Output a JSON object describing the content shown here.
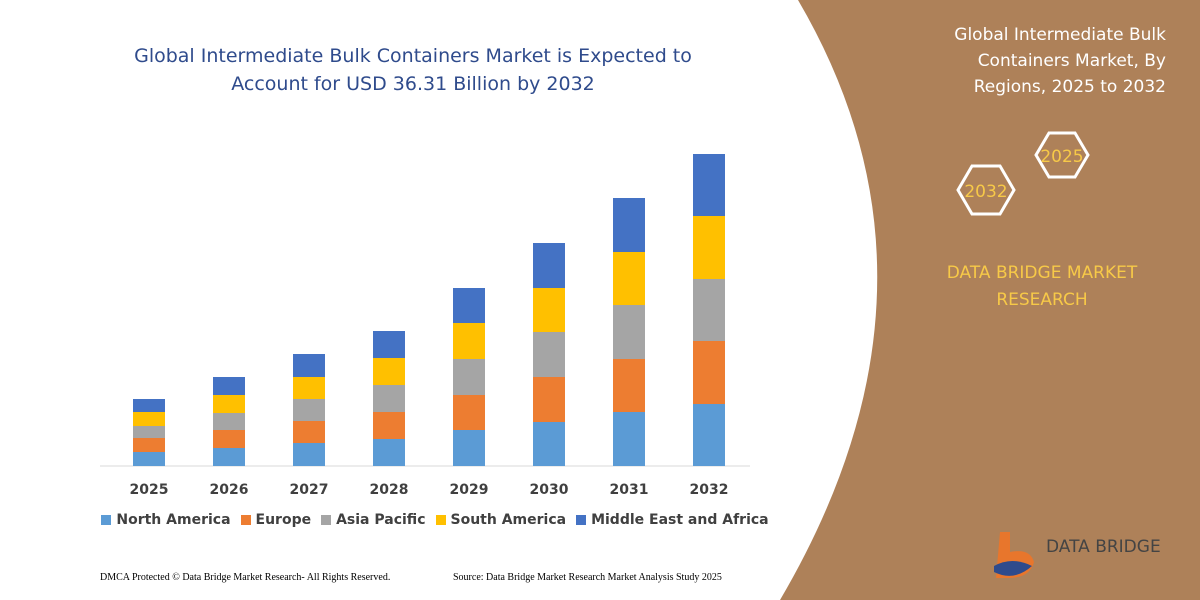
{
  "chart_data": {
    "type": "stacked_bar",
    "title": "Global Intermediate Bulk Containers Market is Expected to Account for USD 36.31 Billion by 2032",
    "categories": [
      "2025",
      "2026",
      "2027",
      "2028",
      "2029",
      "2030",
      "2031",
      "2032"
    ],
    "series": [
      {
        "name": "North America",
        "color": "#5b9bd5",
        "values": [
          14,
          18,
          23,
          27,
          36,
          44,
          54,
          62
        ]
      },
      {
        "name": "Europe",
        "color": "#ed7d31",
        "values": [
          14,
          18,
          22,
          27,
          35,
          45,
          53,
          63
        ]
      },
      {
        "name": "Asia Pacific",
        "color": "#a5a5a5",
        "values": [
          12,
          17,
          22,
          27,
          36,
          45,
          54,
          62
        ]
      },
      {
        "name": "South America",
        "color": "#ffc000",
        "values": [
          14,
          18,
          22,
          27,
          36,
          44,
          53,
          63
        ]
      },
      {
        "name": "Middle East and Africa",
        "color": "#4472c4",
        "values": [
          13,
          18,
          23,
          27,
          35,
          45,
          54,
          62
        ]
      }
    ]
  },
  "panel": {
    "title": "Global Intermediate Bulk Containers Market, By Regions, 2025 to 2032",
    "hex_left": "2032",
    "hex_right": "2025",
    "brand": "DATA BRIDGE MARKET RESEARCH",
    "logo": "DATA BRIDGE"
  },
  "footer": {
    "left": "DMCA Protected © Data Bridge Market Research-  All Rights Reserved.",
    "right": "Source: Data Bridge Market Research  Market Analysis Study 2025"
  }
}
